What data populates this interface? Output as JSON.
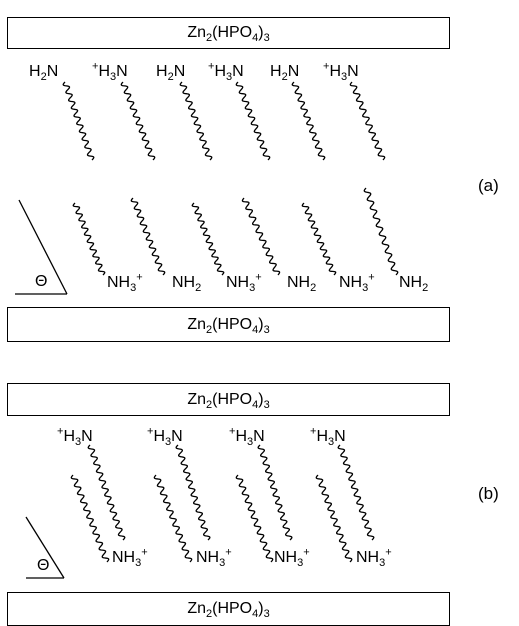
{
  "layers": {
    "formula_parts": [
      "Zn",
      "2",
      "(HPO",
      "4",
      ")",
      "3"
    ]
  },
  "labels": {
    "amine_prefix": "H",
    "amine_sub": "2",
    "amine_suffix": "N",
    "ammonium_sup_pre": "+",
    "ammonium_prefix": "H",
    "ammonium_sub": "3",
    "ammonium_suffix": "N",
    "down_amine": "NH",
    "down_amine_sub": "2",
    "down_ammonium": "NH",
    "down_ammonium_sub": "3",
    "down_ammonium_sup": "+"
  },
  "angle_symbol": "Θ",
  "panels": [
    {
      "id": "a",
      "label": "(a)"
    },
    {
      "id": "b",
      "label": "(b)"
    }
  ]
}
